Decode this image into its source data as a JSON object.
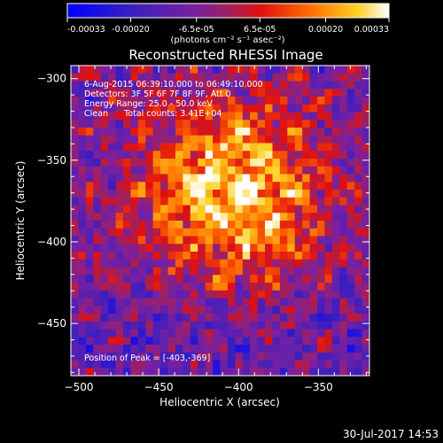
{
  "chart_data": {
    "type": "heatmap",
    "title": "Reconstructed RHESSI Image",
    "xlabel": "Heliocentric X (arcsec)",
    "ylabel": "Heliocentric Y (arcsec)",
    "xlim": [
      -505,
      -318
    ],
    "ylim": [
      -482,
      -292
    ],
    "x_ticks": [
      -500,
      -450,
      -400,
      -350
    ],
    "y_ticks": [
      -300,
      -350,
      -400,
      -450
    ],
    "colorbar": {
      "min": -0.00033,
      "max": 0.00033,
      "tick_values": [
        -0.00033,
        -0.0002,
        -6.5e-05,
        6.5e-05,
        0.0002,
        0.00033
      ],
      "tick_labels": [
        "-0.00033",
        "-0.00020",
        "-6.5e-05",
        "6.5e-05",
        "0.00020",
        "0.00033"
      ],
      "unit_label": "(photons cm⁻² s⁻¹ asec⁻²)"
    },
    "peak_position": [
      -403,
      -369
    ],
    "annotations": [
      "6-Aug-2015 06:39:10.000 to 06:49:10.000",
      "Detectors: 3F 5F 6F 7F 8F 9F, Att 0",
      "Energy Range: 25.0 - 50.0 keV",
      "Clean      Total counts: 3.41E+04"
    ],
    "peak_label": "Position of Peak = [-403,-369]",
    "grid": false
  },
  "footer": {
    "timestamp": "30-Jul-2017 14:53"
  },
  "colors": {
    "background": "#000000",
    "text": "#ffffff"
  }
}
